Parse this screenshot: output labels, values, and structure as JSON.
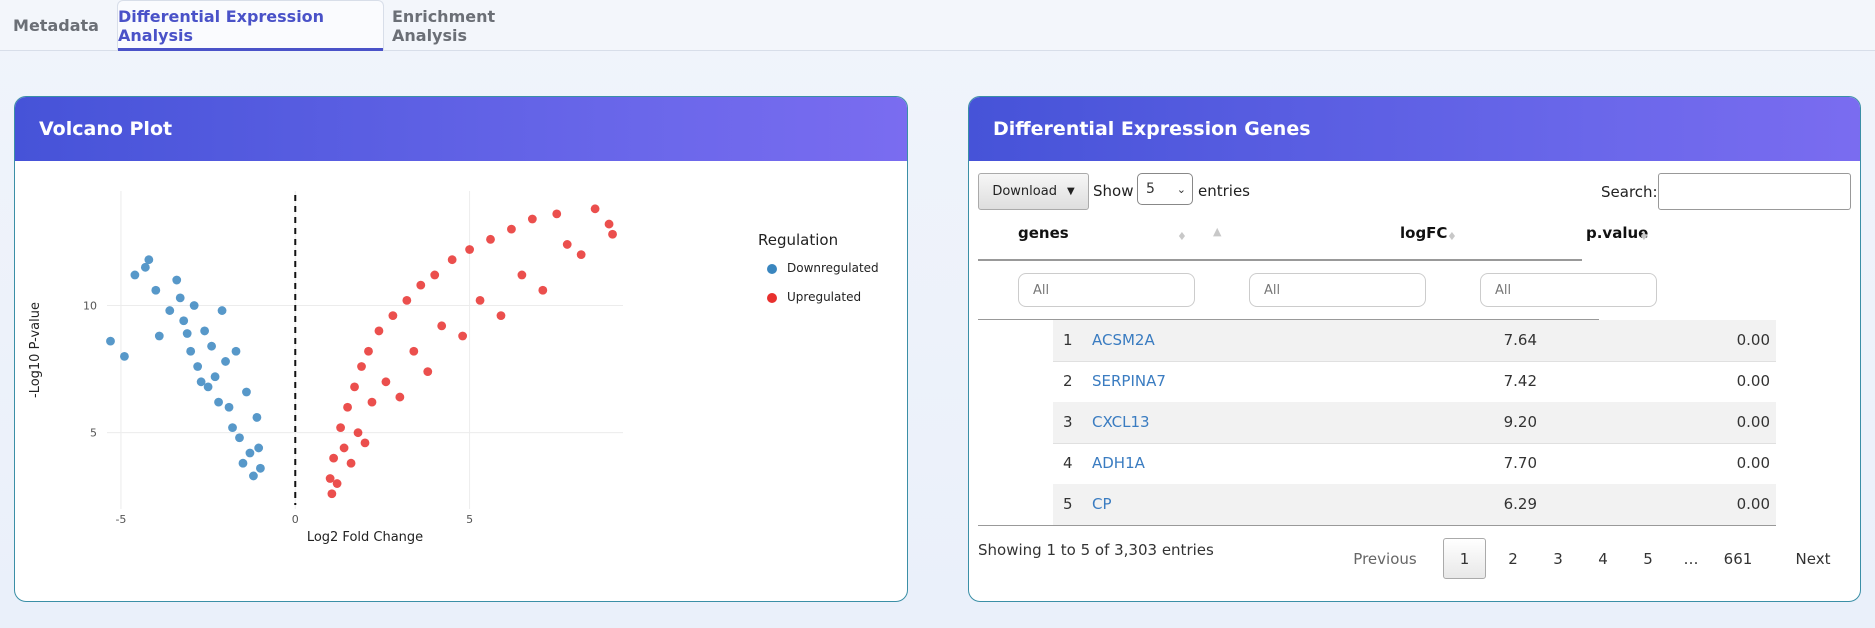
{
  "tabs": [
    {
      "label": "Metadata"
    },
    {
      "label": "Differential Expression Analysis"
    },
    {
      "label": "Enrichment Analysis"
    }
  ],
  "active_tab": "Differential Expression Analysis",
  "colors": {
    "accent": "#4a52c8",
    "down": "#3a86bf",
    "up": "#e8302e",
    "header_start": "#4653d8",
    "header_end": "#7a6cf0",
    "link": "#3a7cc1"
  },
  "volcano": {
    "title": "Volcano Plot",
    "legend_title": "Regulation",
    "legend": [
      {
        "label": "Downregulated",
        "color": "#3a86bf"
      },
      {
        "label": "Upregulated",
        "color": "#e8302e"
      }
    ]
  },
  "chart_data": {
    "type": "scatter",
    "title": "",
    "xlabel": "Log2 Fold Change",
    "ylabel": "-Log10 P-value",
    "xlim": [
      -5.4,
      9.4
    ],
    "ylim": [
      2.0,
      14.5
    ],
    "xticks": [
      -5,
      0,
      5
    ],
    "yticks": [
      5,
      10
    ],
    "threshold_x": 0,
    "grid": true,
    "legend_position": "right",
    "series": [
      {
        "name": "Downregulated",
        "color": "#3a86bf",
        "points": [
          [
            -5.3,
            8.6
          ],
          [
            -4.9,
            8.0
          ],
          [
            -4.6,
            11.2
          ],
          [
            -4.3,
            11.5
          ],
          [
            -4.2,
            11.8
          ],
          [
            -4.0,
            10.6
          ],
          [
            -3.9,
            8.8
          ],
          [
            -3.6,
            9.8
          ],
          [
            -3.4,
            11.0
          ],
          [
            -3.3,
            10.3
          ],
          [
            -3.2,
            9.4
          ],
          [
            -3.1,
            8.9
          ],
          [
            -3.0,
            8.2
          ],
          [
            -2.9,
            10.0
          ],
          [
            -2.8,
            7.6
          ],
          [
            -2.7,
            7.0
          ],
          [
            -2.6,
            9.0
          ],
          [
            -2.5,
            6.8
          ],
          [
            -2.4,
            8.4
          ],
          [
            -2.3,
            7.2
          ],
          [
            -2.2,
            6.2
          ],
          [
            -2.1,
            9.8
          ],
          [
            -2.0,
            7.8
          ],
          [
            -1.9,
            6.0
          ],
          [
            -1.8,
            5.2
          ],
          [
            -1.7,
            8.2
          ],
          [
            -1.6,
            4.8
          ],
          [
            -1.5,
            3.8
          ],
          [
            -1.4,
            6.6
          ],
          [
            -1.3,
            4.2
          ],
          [
            -1.2,
            3.3
          ],
          [
            -1.1,
            5.6
          ],
          [
            -1.05,
            4.4
          ],
          [
            -1.0,
            3.6
          ]
        ]
      },
      {
        "name": "Upregulated",
        "color": "#e8302e",
        "points": [
          [
            1.0,
            3.2
          ],
          [
            1.05,
            2.6
          ],
          [
            1.1,
            4.0
          ],
          [
            1.2,
            3.0
          ],
          [
            1.3,
            5.2
          ],
          [
            1.4,
            4.4
          ],
          [
            1.5,
            6.0
          ],
          [
            1.6,
            3.8
          ],
          [
            1.7,
            6.8
          ],
          [
            1.8,
            5.0
          ],
          [
            1.9,
            7.6
          ],
          [
            2.0,
            4.6
          ],
          [
            2.1,
            8.2
          ],
          [
            2.2,
            6.2
          ],
          [
            2.4,
            9.0
          ],
          [
            2.6,
            7.0
          ],
          [
            2.8,
            9.6
          ],
          [
            3.0,
            6.4
          ],
          [
            3.2,
            10.2
          ],
          [
            3.4,
            8.2
          ],
          [
            3.6,
            10.8
          ],
          [
            3.8,
            7.4
          ],
          [
            4.0,
            11.2
          ],
          [
            4.2,
            9.2
          ],
          [
            4.5,
            11.8
          ],
          [
            4.8,
            8.8
          ],
          [
            5.0,
            12.2
          ],
          [
            5.3,
            10.2
          ],
          [
            5.6,
            12.6
          ],
          [
            5.9,
            9.6
          ],
          [
            6.2,
            13.0
          ],
          [
            6.5,
            11.2
          ],
          [
            6.8,
            13.4
          ],
          [
            7.1,
            10.6
          ],
          [
            7.5,
            13.6
          ],
          [
            7.8,
            12.4
          ],
          [
            8.2,
            12.0
          ],
          [
            8.6,
            13.8
          ],
          [
            9.0,
            13.2
          ],
          [
            9.1,
            12.8
          ]
        ]
      }
    ]
  },
  "deg_table": {
    "title": "Differential Expression Genes",
    "download_label": "Download",
    "show_label": "Show",
    "length_value": "5",
    "entries_label": "entries",
    "search_label": "Search:",
    "columns": [
      "genes",
      "logFC",
      "p.value"
    ],
    "filter_placeholder": "All",
    "rows": [
      {
        "idx": "1",
        "gene": "ACSM2A",
        "logFC": "7.64",
        "pvalue": "0.00"
      },
      {
        "idx": "2",
        "gene": "SERPINA7",
        "logFC": "7.42",
        "pvalue": "0.00"
      },
      {
        "idx": "3",
        "gene": "CXCL13",
        "logFC": "9.20",
        "pvalue": "0.00"
      },
      {
        "idx": "4",
        "gene": "ADH1A",
        "logFC": "7.70",
        "pvalue": "0.00"
      },
      {
        "idx": "5",
        "gene": "CP",
        "logFC": "6.29",
        "pvalue": "0.00"
      }
    ],
    "info": "Showing 1 to 5 of 3,303 entries",
    "pagination": {
      "previous": "Previous",
      "pages": [
        "1",
        "2",
        "3",
        "4",
        "5",
        "…",
        "661"
      ],
      "current": "1",
      "next": "Next"
    }
  }
}
